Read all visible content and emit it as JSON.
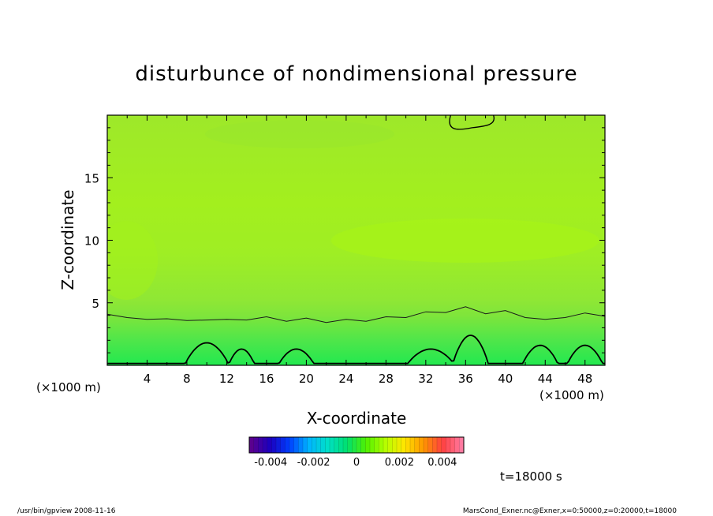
{
  "chart_data": {
    "type": "heatmap",
    "title": "disturbunce of nondimensional pressure",
    "xlabel": "X-coordinate",
    "ylabel": "Z-coordinate",
    "x_unit_left": "(×1000 m)",
    "x_unit_right": "(×1000 m)",
    "xlim": [
      0,
      50
    ],
    "ylim": [
      0,
      20
    ],
    "x_ticks": [
      4,
      8,
      12,
      16,
      20,
      24,
      28,
      32,
      36,
      40,
      44,
      48
    ],
    "y_ticks": [
      5,
      10,
      15
    ],
    "colorbar": {
      "range": [
        -0.005,
        0.005
      ],
      "tick_values": [
        -0.004,
        -0.002,
        0,
        0.002,
        0.004
      ],
      "tick_labels": [
        "-0.004",
        "-0.002",
        "0",
        "0.002",
        "0.004"
      ],
      "colors": [
        "#5a008f",
        "#1a00c0",
        "#0040ff",
        "#00b4ff",
        "#00e0c8",
        "#00e070",
        "#50f000",
        "#b4ff00",
        "#ffe600",
        "#ff9600",
        "#ff4040",
        "#ff7aa0"
      ]
    },
    "field_description": "Nearly uniform near-zero disturbance; slightly positive (yellow-green) in mid levels, slightly negative (green) near surface below z≈4",
    "contour_levels_values": [
      -0.0005,
      0.0
    ],
    "contour_lower_boundary_z": [
      [
        0,
        4.0
      ],
      [
        2,
        3.9
      ],
      [
        4,
        3.6
      ],
      [
        6,
        3.8
      ],
      [
        8,
        3.5
      ],
      [
        10,
        3.7
      ],
      [
        12,
        3.6
      ],
      [
        14,
        3.7
      ],
      [
        16,
        3.8
      ],
      [
        18,
        3.6
      ],
      [
        20,
        3.7
      ],
      [
        22,
        3.5
      ],
      [
        24,
        3.6
      ],
      [
        26,
        3.6
      ],
      [
        28,
        3.8
      ],
      [
        30,
        3.9
      ],
      [
        32,
        4.2
      ],
      [
        34,
        4.3
      ],
      [
        36,
        4.6
      ],
      [
        38,
        4.2
      ],
      [
        40,
        4.3
      ],
      [
        42,
        3.9
      ],
      [
        44,
        3.6
      ],
      [
        46,
        3.9
      ],
      [
        48,
        4.1
      ],
      [
        50,
        4.0
      ]
    ],
    "contour_bumps": [
      {
        "center": 10,
        "width": 2.2,
        "height": 1.8
      },
      {
        "center": 13.5,
        "width": 1.3,
        "height": 1.3
      },
      {
        "center": 19,
        "width": 1.8,
        "height": 1.3
      },
      {
        "center": 32.5,
        "width": 2.4,
        "height": 1.3
      },
      {
        "center": 36.5,
        "width": 1.8,
        "height": 2.4
      },
      {
        "center": 43.5,
        "width": 1.8,
        "height": 1.6
      },
      {
        "center": 48,
        "width": 1.8,
        "height": 1.6
      }
    ],
    "contour_top_closed": {
      "x_range": [
        34.5,
        38.8
      ],
      "z_bottom": 19.0
    }
  },
  "time_label": "t=18000 s",
  "footer_left": "/usr/bin/gpview   2008-11-16",
  "footer_right": "MarsCond_Exner.nc@Exner,x=0:50000,z=0:20000,t=18000",
  "colors": {
    "field_base": "#98ec2c",
    "field_upper": "#a6f419",
    "field_low": "#5be84a",
    "field_bottom": "#2ee84d"
  }
}
